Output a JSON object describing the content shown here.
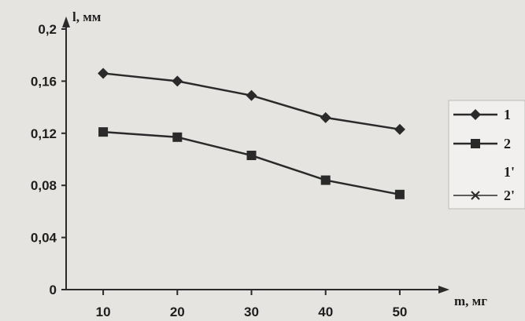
{
  "chart_data": {
    "type": "line",
    "x": [
      10,
      20,
      30,
      40,
      50
    ],
    "xlabel": "m, мг",
    "ylabel": "l, мм",
    "xlim": [
      5,
      55
    ],
    "ylim": [
      0,
      0.2
    ],
    "x_ticks": [
      "10",
      "20",
      "30",
      "40",
      "50"
    ],
    "y_ticks": [
      "0",
      "0,04",
      "0,08",
      "0,12",
      "0,16",
      "0,2"
    ],
    "grid": false,
    "legend_position": "right",
    "series": [
      {
        "name": "1",
        "marker": "diamond",
        "values": [
          0.166,
          0.16,
          0.149,
          0.132,
          0.123
        ]
      },
      {
        "name": "2",
        "marker": "square",
        "values": [
          0.121,
          0.117,
          0.103,
          0.084,
          0.073
        ]
      }
    ],
    "legend_entries": [
      {
        "label": "1",
        "marker": "diamond"
      },
      {
        "label": "2",
        "marker": "square"
      },
      {
        "label": "1'",
        "marker": "none"
      },
      {
        "label": "2'",
        "marker": "x"
      }
    ]
  },
  "colors": {
    "line": "#2a2a2a",
    "background": "#e6e4e1",
    "legend_bg": "#f1f0ee"
  }
}
